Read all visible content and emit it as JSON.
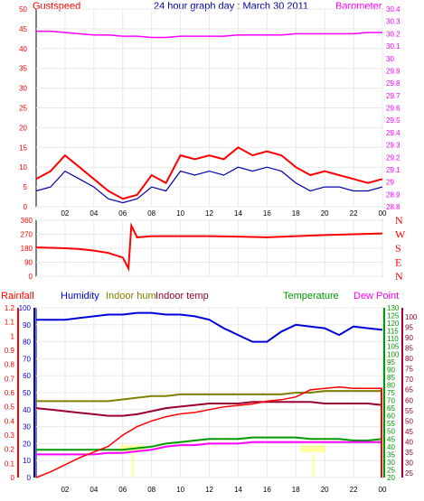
{
  "title": "24 hour graph day : March 30 2011",
  "colors": {
    "gust": "#ff0000",
    "baro": "#ff00ff",
    "wind_avg": "#0000aa",
    "direction": "#ff0000",
    "rain_axis": "#ff0000",
    "humidity": "#0000dd",
    "indoor_hum": "#808000",
    "indoor_temp": "#990033",
    "temperature": "#009900",
    "dewpoint": "#ff00ff",
    "rainfall": "#ff0000",
    "marker": "#ffff66"
  },
  "x_ticks": [
    "02",
    "04",
    "06",
    "08",
    "10",
    "12",
    "14",
    "16",
    "18",
    "20",
    "22",
    "00"
  ],
  "chart_data": [
    {
      "type": "line",
      "title": "24 hour graph day : March 30 2011",
      "left_axis_label": "Gustspeed",
      "right_axis_label": "Barometer",
      "left_ticks": [
        "0",
        "5",
        "10",
        "15",
        "20",
        "25",
        "30",
        "35",
        "40",
        "45",
        "50"
      ],
      "right_ticks": [
        "28.8",
        "28.9",
        "29",
        "29.1",
        "29.2",
        "29.3",
        "29.4",
        "29.5",
        "29.6",
        "29.7",
        "29.8",
        "29.9",
        "30",
        "30.1",
        "30.2",
        "30.3",
        "30.4"
      ],
      "ylim_left": [
        0,
        50
      ],
      "ylim_right": [
        28.8,
        30.4
      ],
      "x_hours": [
        0,
        1,
        2,
        3,
        4,
        5,
        6,
        7,
        8,
        9,
        10,
        11,
        12,
        13,
        14,
        15,
        16,
        17,
        18,
        19,
        20,
        21,
        22,
        23,
        24
      ],
      "series": [
        {
          "name": "Gustspeed",
          "values": [
            7,
            9,
            13,
            10,
            7,
            4,
            2,
            3,
            8,
            6,
            13,
            12,
            13,
            12,
            15,
            13,
            14,
            13,
            10,
            8,
            9,
            8,
            7,
            6,
            7
          ]
        },
        {
          "values": [
            4,
            5,
            9,
            7,
            5,
            2,
            1,
            2,
            5,
            4,
            9,
            8,
            9,
            8,
            10,
            9,
            10,
            9,
            6,
            4,
            5,
            5,
            4,
            4,
            5
          ]
        },
        {
          "name": "Barometer",
          "values": [
            30.22,
            30.22,
            30.21,
            30.2,
            30.19,
            30.19,
            30.18,
            30.18,
            30.17,
            30.17,
            30.18,
            30.18,
            30.18,
            30.18,
            30.19,
            30.19,
            30.19,
            30.19,
            30.2,
            30.2,
            30.2,
            30.2,
            30.2,
            30.21,
            30.21
          ]
        }
      ]
    },
    {
      "type": "line",
      "y_ticks": [
        "0",
        "90",
        "180",
        "270",
        "360"
      ],
      "ylim": [
        0,
        360
      ],
      "direction_labels": [
        "N",
        "W",
        "S",
        "E",
        "N"
      ],
      "x_hours": [
        0,
        1,
        2,
        3,
        4,
        5,
        6,
        6.4,
        6.6,
        7,
        8,
        10,
        12,
        14,
        16,
        18,
        20,
        22,
        24
      ],
      "series": [
        {
          "values": [
            185,
            183,
            180,
            175,
            165,
            150,
            120,
            50,
            325,
            250,
            258,
            258,
            258,
            255,
            250,
            258,
            265,
            270,
            275
          ]
        }
      ]
    },
    {
      "type": "line",
      "left_labels": [
        "Rainfall",
        "Humidity",
        "Indoor hum",
        "Indoor temp"
      ],
      "right_labels": [
        "Temperature",
        "Dew Point"
      ],
      "rain_ticks": [
        "0",
        "0.1",
        "0.2",
        "0.3",
        "0.4",
        "0.5",
        "0.6",
        "0.7",
        "0.8",
        "0.9",
        "1",
        "1.1",
        "1.2"
      ],
      "hum_ticks": [
        "0",
        "10",
        "20",
        "30",
        "40",
        "50",
        "60",
        "70",
        "80",
        "90",
        "100"
      ],
      "temp_ticks": [
        "20",
        "25",
        "30",
        "35",
        "40",
        "45",
        "50",
        "55",
        "60",
        "65",
        "70",
        "75",
        "80",
        "85",
        "90",
        "95",
        "100",
        "105",
        "110",
        "115",
        "120",
        "125",
        "130"
      ],
      "dew_ticks": [
        "25",
        "30",
        "35",
        "40",
        "45",
        "50",
        "55",
        "60",
        "65",
        "70",
        "75",
        "80",
        "85",
        "90",
        "95",
        "100"
      ],
      "ylim_rain": [
        0,
        1.2
      ],
      "ylim_humidity": [
        0,
        100
      ],
      "ylim_temp": [
        20,
        130
      ],
      "x_hours": [
        0,
        1,
        2,
        3,
        4,
        5,
        6,
        7,
        8,
        9,
        10,
        11,
        12,
        13,
        14,
        15,
        16,
        17,
        18,
        19,
        20,
        21,
        22,
        23,
        24
      ],
      "series": [
        {
          "name": "Humidity",
          "values": [
            93,
            93,
            93,
            94,
            95,
            96,
            96,
            97,
            97,
            96,
            96,
            95,
            93,
            88,
            84,
            80,
            80,
            86,
            90,
            89,
            88,
            84,
            89,
            88,
            87
          ]
        },
        {
          "name": "Indoor hum",
          "values": [
            45,
            45,
            45,
            45,
            45,
            45,
            46,
            47,
            48,
            48,
            49,
            49,
            49,
            49,
            49,
            49,
            49,
            49,
            50,
            50,
            51,
            51,
            51,
            51,
            51
          ]
        },
        {
          "name": "Indoor temp",
          "values": [
            65,
            64,
            63,
            62,
            61,
            60,
            60,
            61,
            63,
            65,
            66,
            67,
            68,
            68,
            68,
            69,
            69,
            69,
            69,
            69,
            68,
            68,
            68,
            68,
            67
          ]
        },
        {
          "name": "Temperature",
          "values": [
            38,
            38,
            38,
            38,
            38,
            38,
            38,
            39,
            40,
            42,
            43,
            44,
            45,
            45,
            45,
            46,
            46,
            46,
            46,
            45,
            45,
            45,
            44,
            44,
            45
          ]
        },
        {
          "name": "Dew Point",
          "values": [
            35,
            35,
            35,
            35,
            35,
            36,
            36,
            37,
            38,
            40,
            41,
            41,
            42,
            42,
            42,
            43,
            43,
            43,
            43,
            43,
            43,
            43,
            43,
            43,
            43
          ]
        },
        {
          "name": "Rainfall",
          "values": [
            0.0,
            0.04,
            0.09,
            0.14,
            0.18,
            0.22,
            0.3,
            0.36,
            0.4,
            0.43,
            0.45,
            0.46,
            0.48,
            0.5,
            0.51,
            0.52,
            0.54,
            0.55,
            0.57,
            0.62,
            0.63,
            0.64,
            0.63,
            0.63,
            0.63
          ]
        }
      ],
      "markers_hours": [
        6.7,
        19.2
      ]
    }
  ]
}
